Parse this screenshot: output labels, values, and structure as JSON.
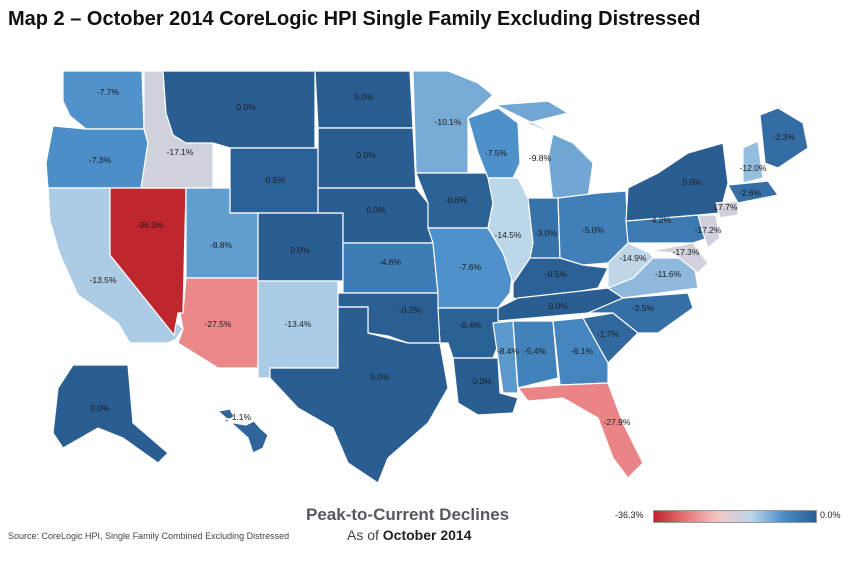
{
  "title": "Map 2 – October 2014 CoreLogic HPI Single Family Excluding Distressed",
  "subtitle": "Peak-to-Current Declines",
  "as_of_prefix": "As of",
  "as_of_value": "October 2014",
  "source": "Source: CoreLogic HPI, Single Family Combined Excluding Distressed",
  "legend": {
    "min_label": "-36.3%",
    "max_label": "0.0%",
    "min_value": -36.3,
    "max_value": 0.0,
    "colors": [
      "#c0262d",
      "#e8777a",
      "#f2c7c5",
      "#bcd6ea",
      "#4a8ec8",
      "#2a5e93"
    ]
  },
  "states": [
    {
      "code": "WA",
      "value": -7.7,
      "label": "-7.7%"
    },
    {
      "code": "OR",
      "value": -7.3,
      "label": "-7.3%"
    },
    {
      "code": "CA",
      "value": -13.5,
      "label": "-13.5%"
    },
    {
      "code": "NV",
      "value": -36.3,
      "label": "-36.3%"
    },
    {
      "code": "ID",
      "value": -17.1,
      "label": "-17.1%"
    },
    {
      "code": "MT",
      "value": 0.0,
      "label": "0.0%"
    },
    {
      "code": "WY",
      "value": -0.5,
      "label": "-0.5%"
    },
    {
      "code": "UT",
      "value": -8.8,
      "label": "-8.8%"
    },
    {
      "code": "AZ",
      "value": -27.5,
      "label": "-27.5%"
    },
    {
      "code": "CO",
      "value": 0.0,
      "label": "0.0%"
    },
    {
      "code": "NM",
      "value": -13.4,
      "label": "-13.4%"
    },
    {
      "code": "ND",
      "value": 0.0,
      "label": "0.0%"
    },
    {
      "code": "SD",
      "value": 0.0,
      "label": "0.0%"
    },
    {
      "code": "NE",
      "value": 0.0,
      "label": "0.0%"
    },
    {
      "code": "KS",
      "value": -4.6,
      "label": "-4.6%"
    },
    {
      "code": "OK",
      "value": -0.2,
      "label": "-0.2%"
    },
    {
      "code": "TX",
      "value": 0.0,
      "label": "0.0%"
    },
    {
      "code": "MN",
      "value": -10.1,
      "label": "-10.1%"
    },
    {
      "code": "IA",
      "value": -0.6,
      "label": "-0.6%"
    },
    {
      "code": "MO",
      "value": -7.6,
      "label": "-7.6%"
    },
    {
      "code": "AR",
      "value": -0.4,
      "label": "-0.4%"
    },
    {
      "code": "LA",
      "value": 0.0,
      "label": "0.0%"
    },
    {
      "code": "WI",
      "value": -7.5,
      "label": "-7.5%"
    },
    {
      "code": "IL",
      "value": -14.5,
      "label": "-14.5%"
    },
    {
      "code": "MI",
      "value": -9.8,
      "label": "-9.8%"
    },
    {
      "code": "IN",
      "value": -3.0,
      "label": "-3.0%"
    },
    {
      "code": "OH",
      "value": -5.0,
      "label": "-5.0%"
    },
    {
      "code": "KY",
      "value": -0.5,
      "label": "-0.5%"
    },
    {
      "code": "TN",
      "value": 0.0,
      "label": "0.0%"
    },
    {
      "code": "MS",
      "value": -8.4,
      "label": "-8.4%"
    },
    {
      "code": "AL",
      "value": -5.4,
      "label": "-5.4%"
    },
    {
      "code": "GA",
      "value": -6.1,
      "label": "-6.1%"
    },
    {
      "code": "FL",
      "value": -27.9,
      "label": "-27.9%"
    },
    {
      "code": "SC",
      "value": -1.7,
      "label": "-1.7%"
    },
    {
      "code": "NC",
      "value": -2.5,
      "label": "-2.5%"
    },
    {
      "code": "VA",
      "value": -11.6,
      "label": "-11.6%"
    },
    {
      "code": "WV",
      "value": -14.9,
      "label": "-14.9%"
    },
    {
      "code": "MD",
      "value": -17.3,
      "label": "-17.3%"
    },
    {
      "code": "PA",
      "value": -4.2,
      "label": "-4.2%"
    },
    {
      "code": "NJ",
      "value": -17.2,
      "label": "-17.2%"
    },
    {
      "code": "NY",
      "value": 0.0,
      "label": "0.0%"
    },
    {
      "code": "CT",
      "value": -17.7,
      "label": "-17.7%"
    },
    {
      "code": "MA",
      "value": -2.6,
      "label": "-2.6%"
    },
    {
      "code": "NH",
      "value": -12.0,
      "label": "-12.0%"
    },
    {
      "code": "ME",
      "value": -2.3,
      "label": "-2.3%"
    },
    {
      "code": "AK",
      "value": 0.0,
      "label": "0.0%"
    },
    {
      "code": "HI",
      "value": -1.1,
      "label": "-1.1%"
    }
  ]
}
